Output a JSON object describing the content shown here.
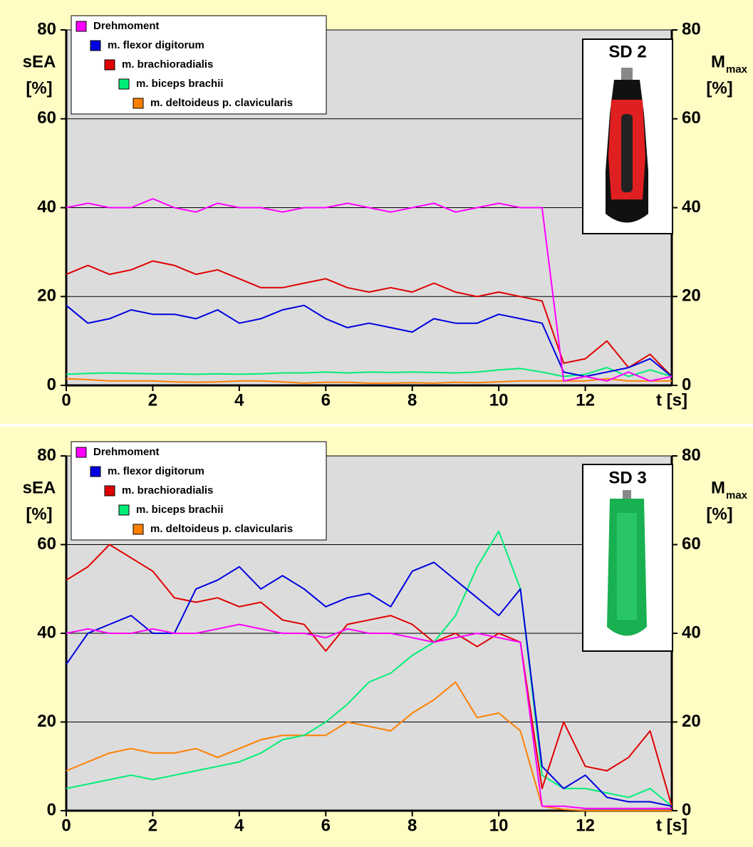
{
  "chart_data": [
    {
      "type": "line",
      "inset_label": "SD 2",
      "ylabel": [
        "sEA",
        "[%]"
      ],
      "y2label": [
        "M",
        "max",
        "[%]"
      ],
      "xlabel": "t [s]",
      "xlim": [
        0,
        14
      ],
      "xticks": [
        0,
        2,
        4,
        6,
        8,
        10,
        12
      ],
      "ylim": [
        0,
        80
      ],
      "yticks": [
        0,
        20,
        40,
        60,
        80
      ],
      "y2lim": [
        0,
        80
      ],
      "y2ticks": [
        0,
        20,
        40,
        60,
        80
      ],
      "grid": true,
      "legend": "top-left",
      "x": [
        0,
        0.5,
        1,
        1.5,
        2,
        2.5,
        3,
        3.5,
        4,
        4.5,
        5,
        5.5,
        6,
        6.5,
        7,
        7.5,
        8,
        8.5,
        9,
        9.5,
        10,
        10.5,
        11,
        11.5,
        12,
        12.5,
        13,
        13.5,
        14
      ],
      "series": [
        {
          "name": "Drehmoment",
          "color": "#ff00ff",
          "axis": "y2",
          "values": [
            40,
            41,
            40,
            40,
            42,
            40,
            39,
            41,
            40,
            40,
            39,
            40,
            40,
            41,
            40,
            39,
            40,
            41,
            39,
            40,
            41,
            40,
            40,
            1,
            2,
            1,
            3,
            1,
            2
          ]
        },
        {
          "name": "m. flexor digitorum",
          "color": "#0000e0",
          "values": [
            18,
            14,
            15,
            17,
            16,
            16,
            15,
            17,
            14,
            15,
            17,
            18,
            15,
            13,
            14,
            13,
            12,
            15,
            14,
            14,
            16,
            15,
            14,
            3,
            2,
            3,
            4,
            6,
            2
          ]
        },
        {
          "name": "m. brachioradialis",
          "color": "#e00000",
          "values": [
            25,
            27,
            25,
            26,
            28,
            27,
            25,
            26,
            24,
            22,
            22,
            23,
            24,
            22,
            21,
            22,
            21,
            23,
            21,
            20,
            21,
            20,
            19,
            5,
            6,
            10,
            4,
            7,
            2
          ]
        },
        {
          "name": "m. biceps brachii",
          "color": "#00ee77",
          "values": [
            2.5,
            2.7,
            2.8,
            2.7,
            2.6,
            2.6,
            2.5,
            2.6,
            2.5,
            2.6,
            2.8,
            2.8,
            3,
            2.8,
            3,
            2.9,
            3,
            2.9,
            2.8,
            3,
            3.5,
            3.8,
            3,
            2,
            2.5,
            4,
            2,
            3.5,
            2
          ]
        },
        {
          "name": "m. deltoideus p. clavicularis",
          "color": "#ff8000",
          "values": [
            1.5,
            1.3,
            1,
            1,
            1,
            0.8,
            0.7,
            0.8,
            1,
            1,
            0.8,
            0.5,
            0.7,
            0.7,
            0.5,
            0.5,
            0.6,
            0.5,
            0.7,
            0.6,
            0.8,
            1,
            1,
            1,
            1,
            1.5,
            1,
            1,
            1
          ]
        }
      ]
    },
    {
      "type": "line",
      "inset_label": "SD 3",
      "ylabel": [
        "sEA",
        "[%]"
      ],
      "y2label": [
        "M",
        "max",
        "[%]"
      ],
      "xlabel": "t [s]",
      "xlim": [
        0,
        14
      ],
      "xticks": [
        0,
        2,
        4,
        6,
        8,
        10,
        12
      ],
      "ylim": [
        0,
        80
      ],
      "yticks": [
        0,
        20,
        40,
        60,
        80
      ],
      "y2lim": [
        0,
        80
      ],
      "y2ticks": [
        0,
        20,
        40,
        60,
        80
      ],
      "grid": true,
      "legend": "top-left",
      "x": [
        0,
        0.5,
        1,
        1.5,
        2,
        2.5,
        3,
        3.5,
        4,
        4.5,
        5,
        5.5,
        6,
        6.5,
        7,
        7.5,
        8,
        8.5,
        9,
        9.5,
        10,
        10.5,
        11,
        11.5,
        12,
        12.5,
        13,
        13.5,
        14
      ],
      "series": [
        {
          "name": "Drehmoment",
          "color": "#ff00ff",
          "axis": "y2",
          "values": [
            40,
            41,
            40,
            40,
            41,
            40,
            40,
            41,
            42,
            41,
            40,
            40,
            39,
            41,
            40,
            40,
            39,
            38,
            39,
            40,
            39,
            38,
            1,
            1,
            0.5,
            0.5,
            0.5,
            0.5,
            0.5
          ]
        },
        {
          "name": "m. flexor digitorum",
          "color": "#0000e0",
          "values": [
            33,
            40,
            42,
            44,
            40,
            40,
            50,
            52,
            55,
            50,
            53,
            50,
            46,
            48,
            49,
            46,
            54,
            56,
            52,
            48,
            44,
            50,
            10,
            5,
            8,
            3,
            2,
            2,
            1
          ]
        },
        {
          "name": "m. brachioradialis",
          "color": "#e00000",
          "values": [
            52,
            55,
            60,
            57,
            54,
            48,
            47,
            48,
            46,
            47,
            43,
            42,
            36,
            42,
            43,
            44,
            42,
            38,
            40,
            37,
            40,
            38,
            5,
            20,
            10,
            9,
            12,
            18,
            1
          ]
        },
        {
          "name": "m. biceps brachii",
          "color": "#00ee77",
          "values": [
            5,
            6,
            7,
            8,
            7,
            8,
            9,
            10,
            11,
            13,
            16,
            17,
            20,
            24,
            29,
            31,
            35,
            38,
            44,
            55,
            63,
            50,
            8,
            5,
            5,
            4,
            3,
            5,
            1
          ]
        },
        {
          "name": "m. deltoideus p. clavicularis",
          "color": "#ff8000",
          "values": [
            9,
            11,
            13,
            14,
            13,
            13,
            14,
            12,
            14,
            16,
            17,
            17,
            17,
            20,
            19,
            18,
            22,
            25,
            29,
            21,
            22,
            18,
            1,
            0.3,
            0,
            0,
            0,
            0,
            0
          ]
        }
      ]
    }
  ]
}
